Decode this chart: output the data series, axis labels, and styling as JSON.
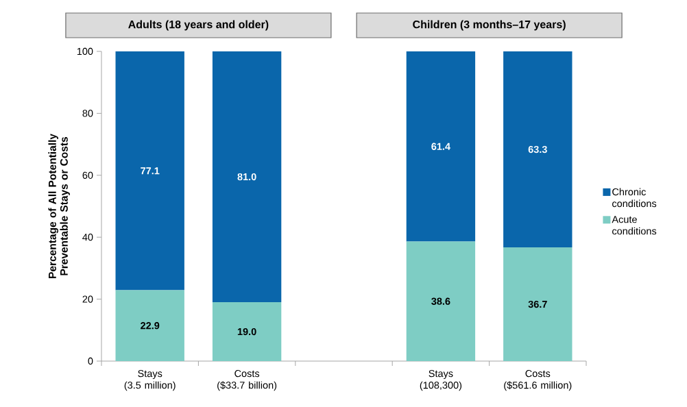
{
  "chart_data": {
    "type": "bar",
    "stacked": true,
    "ylabel": "Percentage of All Potentially Preventable Stays or Costs",
    "annotations": [
      "Adults (18 years and older)",
      "Children (3 months–17 years)"
    ],
    "categories": [
      "Stays\n(3.5 million)",
      "Costs\n($33.7 billion)",
      null,
      "Stays\n(108,300)",
      "Costs\n($561.6 million)"
    ],
    "series": [
      {
        "name": "Acute conditions",
        "color": "#7ecdc4",
        "values": [
          22.9,
          19.0,
          null,
          38.6,
          36.7
        ],
        "value_labels": [
          "22.9",
          "19.0",
          null,
          "38.6",
          "36.7"
        ]
      },
      {
        "name": "Chronic conditions",
        "color": "#0a66ab",
        "values": [
          77.1,
          81.0,
          null,
          61.4,
          63.3
        ],
        "value_labels": [
          "77.1",
          "81.0",
          null,
          "61.4",
          "63.3"
        ]
      }
    ],
    "ylim": [
      0,
      100
    ],
    "yticks": [
      0,
      20,
      40,
      60,
      80,
      100
    ],
    "legend": "right"
  }
}
